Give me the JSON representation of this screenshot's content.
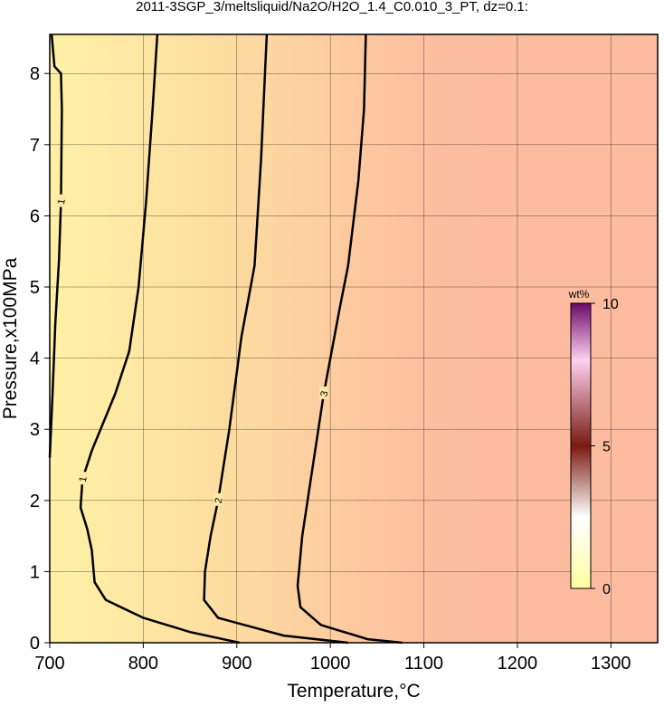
{
  "chart_data": {
    "type": "contour",
    "title": "2011-3SGP_3/meltsliquid/Na2O/H2O_1.4_C0.010_3_PT, dz=0.1:",
    "x_label": "Temperature,°C",
    "y_label": "Pressure,x100MPa",
    "xlim": [
      700,
      1350
    ],
    "ylim": [
      0,
      8.55
    ],
    "xticks": [
      700,
      800,
      900,
      1000,
      1100,
      1200,
      1300
    ],
    "yticks": [
      0,
      1,
      2,
      3,
      4,
      5,
      6,
      7,
      8
    ],
    "grid": true,
    "contours": [
      {
        "level": 1,
        "temperature": [
          903,
          850,
          800,
          760,
          748,
          745,
          740,
          733,
          735,
          745,
          770,
          785,
          795,
          803,
          810,
          815
        ],
        "pressure": [
          0,
          0.15,
          0.35,
          0.6,
          0.85,
          1.3,
          1.6,
          1.9,
          2.3,
          2.7,
          3.5,
          4.1,
          5.0,
          6.2,
          7.5,
          8.55
        ]
      },
      {
        "level": 1,
        "temperature": [
          700,
          703,
          706,
          710,
          712,
          713,
          712,
          705,
          702
        ],
        "pressure": [
          2.6,
          3.5,
          4.5,
          5.4,
          6.2,
          7.5,
          8.0,
          8.1,
          8.55
        ]
      },
      {
        "level": 2,
        "temperature": [
          1019,
          950,
          880,
          865,
          866,
          872,
          880,
          892,
          905,
          919,
          926,
          932
        ],
        "pressure": [
          0,
          0.1,
          0.35,
          0.6,
          1.0,
          1.5,
          2.0,
          3.0,
          4.3,
          5.3,
          6.8,
          8.55
        ]
      },
      {
        "level": 3,
        "temperature": [
          1077,
          1040,
          990,
          968,
          965,
          970,
          978,
          993,
          1010,
          1019,
          1030,
          1036,
          1038
        ],
        "pressure": [
          0,
          0.05,
          0.25,
          0.5,
          0.8,
          1.5,
          2.2,
          3.5,
          4.7,
          5.3,
          6.5,
          7.5,
          8.55
        ]
      }
    ],
    "colorbar": {
      "label": "wt%",
      "lim": [
        0,
        10
      ],
      "ticks": [
        0,
        5,
        10
      ]
    }
  }
}
